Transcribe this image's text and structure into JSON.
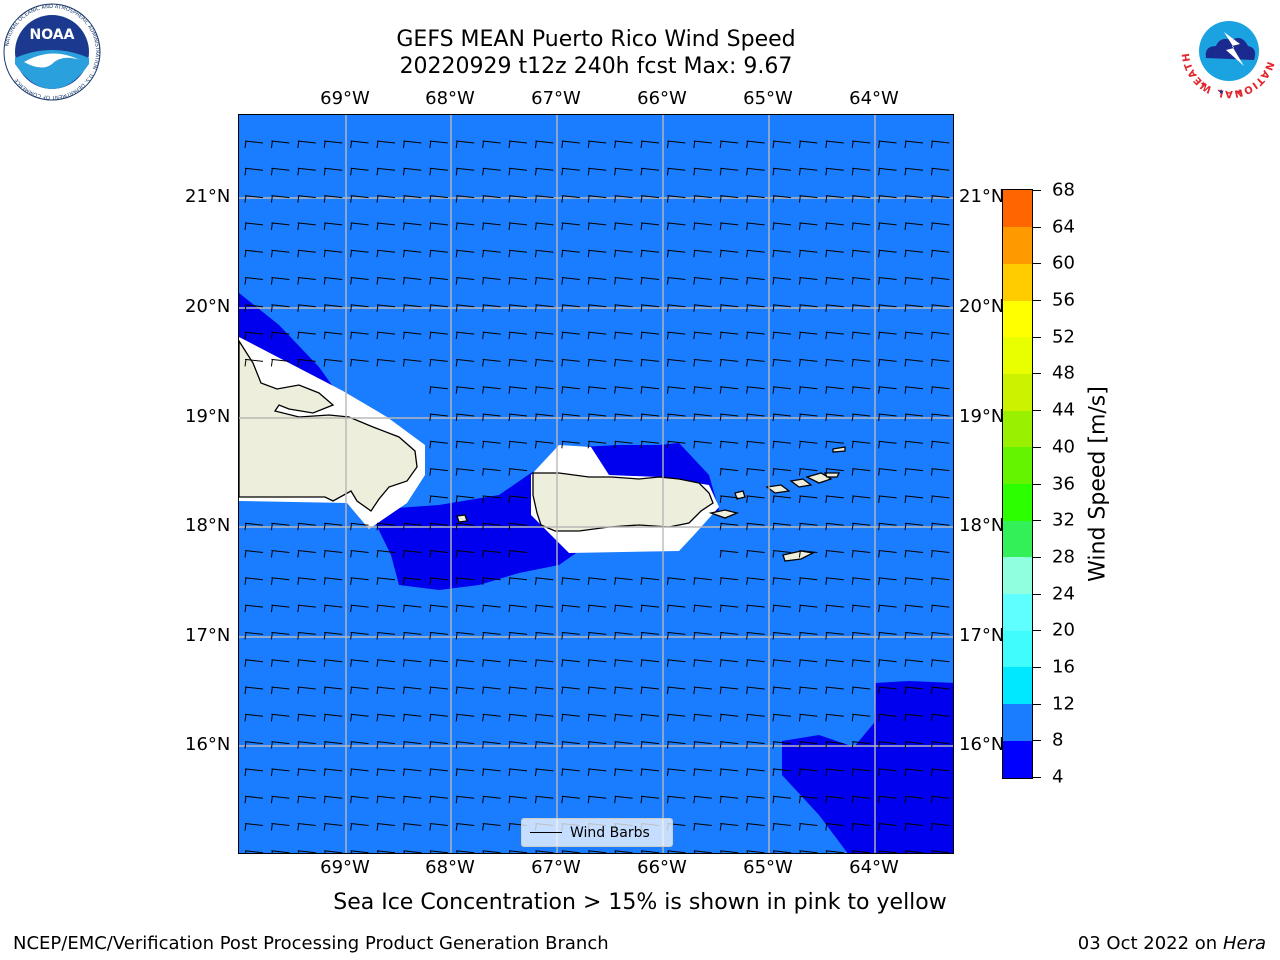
{
  "title": {
    "line1": "GEFS MEAN Puerto Rico Wind Speed",
    "line2": "20220929 t12z 240h fcst   Max: 9.67"
  },
  "map": {
    "lon_labels": [
      "69°W",
      "68°W",
      "67°W",
      "66°W",
      "65°W",
      "64°W"
    ],
    "lat_labels": [
      "21°N",
      "20°N",
      "19°N",
      "18°N",
      "17°N",
      "16°N"
    ],
    "legend_label": "Wind Barbs",
    "background_fill_color": "#1a7cff",
    "slow_wind_color": "#0000ee",
    "land_color": "#eeeedd"
  },
  "colorbar": {
    "label": "Wind Speed [m/s]",
    "ticks": [
      "68",
      "64",
      "60",
      "56",
      "52",
      "48",
      "44",
      "40",
      "36",
      "32",
      "28",
      "24",
      "20",
      "16",
      "12",
      "8",
      "4"
    ],
    "colors": [
      "#0000ff",
      "#1a7cff",
      "#00e8ff",
      "#40fdfd",
      "#60ffff",
      "#90ffe0",
      "#33f058",
      "#2bff00",
      "#64f400",
      "#99f000",
      "#cdf200",
      "#e9ff00",
      "#ffff00",
      "#ffcc00",
      "#ff9900",
      "#ff6600",
      "#ff3300",
      "#ff0000"
    ]
  },
  "subtitle": "Sea Ice Concentration > 15% is shown in pink to yellow",
  "footer": {
    "left": "NCEP/EMC/Verification Post Processing Product Generation Branch",
    "date": "03 Oct 2022 on ",
    "machine": "Hera"
  },
  "logos": {
    "noaa_text": "NOAA",
    "noaa_ring": "NATIONAL OCEANIC AND ATMOSPHERIC ADMINISTRATION · U.S. DEPARTMENT OF COMMERCE",
    "nws_ring": "NATIONAL WEATHER SERVICE"
  }
}
